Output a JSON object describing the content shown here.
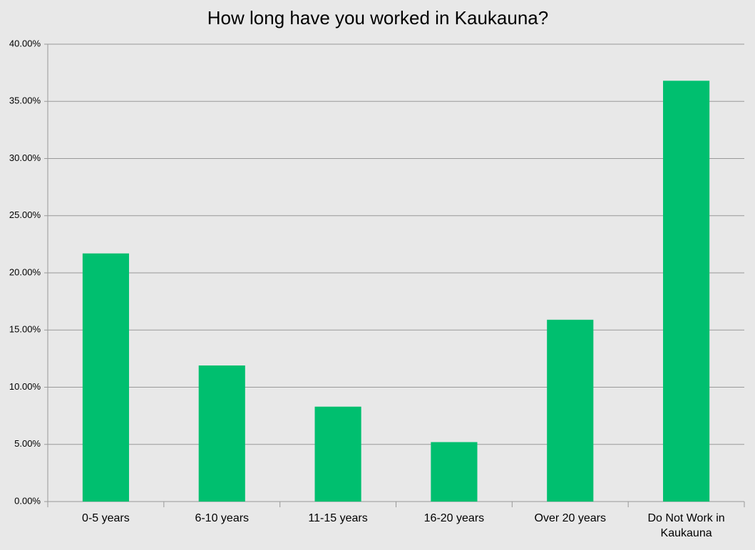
{
  "chart_data": {
    "type": "bar",
    "title": "How long have you worked in Kaukauna?",
    "categories": [
      "0-5 years",
      "6-10 years",
      "11-15 years",
      "16-20 years",
      "Over 20 years",
      "Do Not Work in Kaukauna"
    ],
    "values": [
      21.7,
      11.9,
      8.3,
      5.2,
      15.9,
      36.8
    ],
    "color": "#00bf6f",
    "ylim": [
      0,
      40
    ],
    "yticks": [
      {
        "value": 0,
        "label": "0.00%"
      },
      {
        "value": 5,
        "label": "5.00%"
      },
      {
        "value": 10,
        "label": "10.00%"
      },
      {
        "value": 15,
        "label": "15.00%"
      },
      {
        "value": 20,
        "label": "20.00%"
      },
      {
        "value": 25,
        "label": "25.00%"
      },
      {
        "value": 30,
        "label": "30.00%"
      },
      {
        "value": 35,
        "label": "35.00%"
      },
      {
        "value": 40,
        "label": "40.00%"
      }
    ],
    "grid": true
  }
}
